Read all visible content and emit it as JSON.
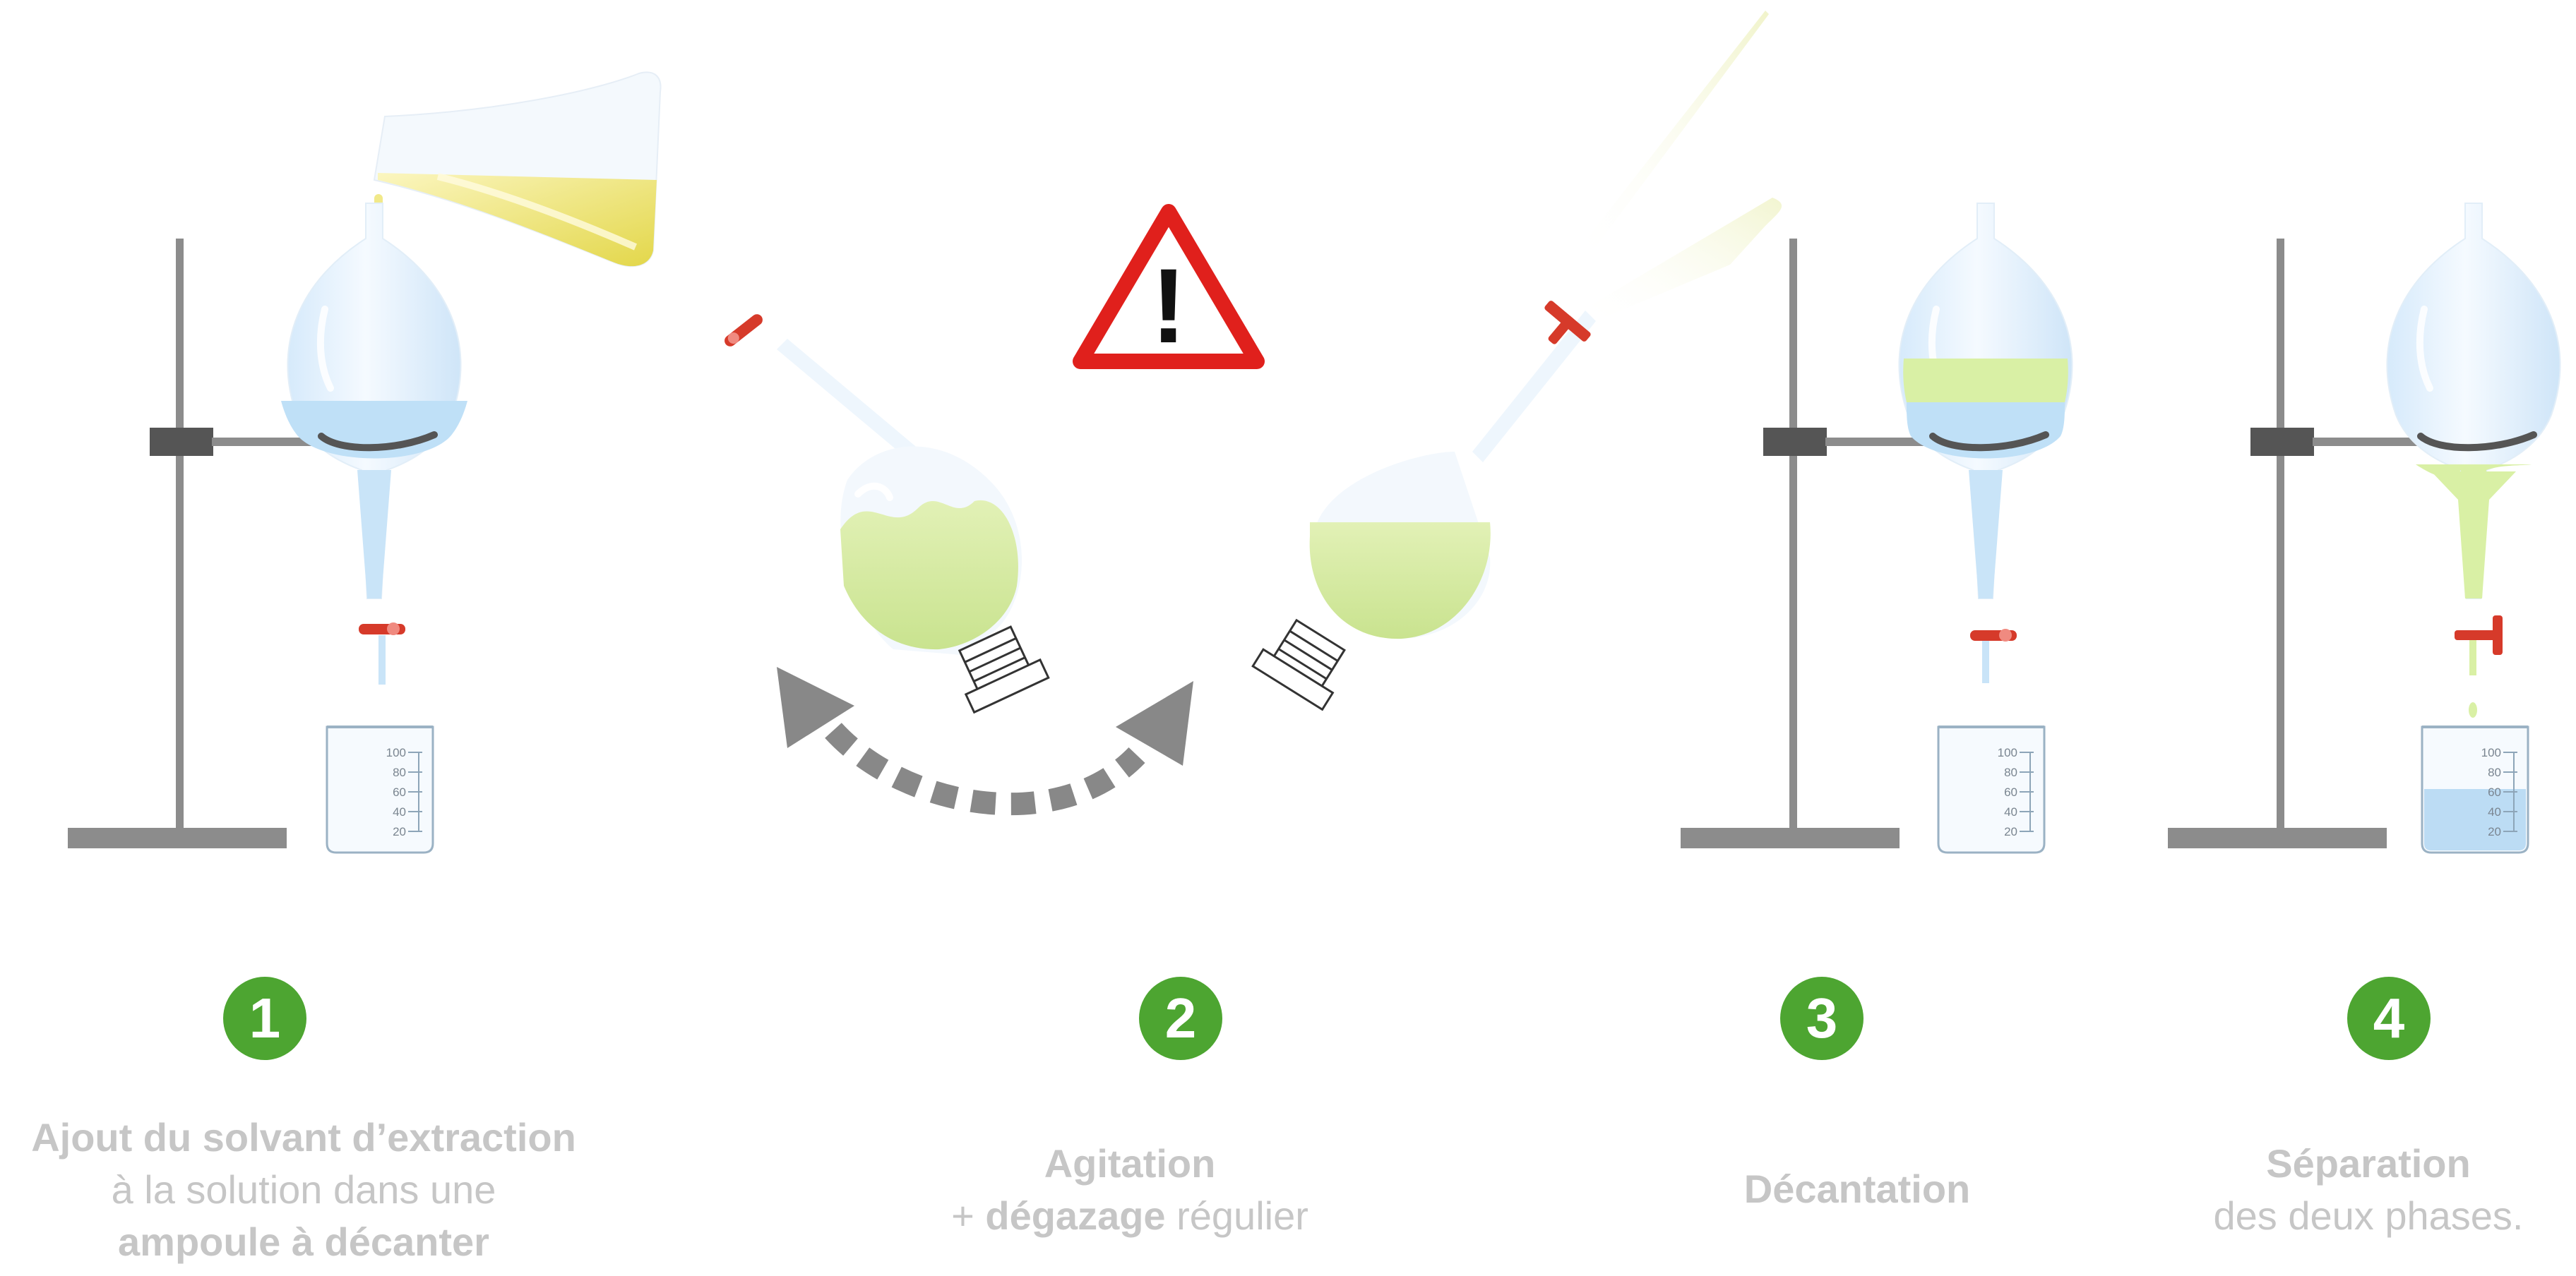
{
  "steps": [
    {
      "number": "1",
      "line1": "Ajout du solvant d’extraction",
      "line2": "à la solution dans une",
      "line3": "ampoule à décanter"
    },
    {
      "number": "2",
      "line1": "Agitation",
      "line2_prefix": "+ ",
      "line2_bold": "dégazage",
      "line2_suffix": " régulier"
    },
    {
      "number": "3",
      "line1": "Décantation"
    },
    {
      "number": "4",
      "line1": "Séparation",
      "line2": "des deux phases."
    }
  ],
  "beaker_ticks": [
    "100",
    "80",
    "60",
    "40",
    "20"
  ],
  "warning_glyph": "!",
  "icons": [
    "warning-triangle-icon",
    "curved-dashed-arrow-icon",
    "separatory-funnel-icon",
    "graduated-beaker-icon"
  ],
  "colors": {
    "badge_green": "#4da531",
    "caption_gray": "#c6c6c6",
    "stand_gray": "#8c8c8c",
    "aqueous_blue": "#b9dcf5",
    "organic_green": "#d6ecaa",
    "solvent_yellow": "#e6dc5a",
    "stopcock_red": "#d63a2a",
    "warning_red": "#e0201c"
  }
}
